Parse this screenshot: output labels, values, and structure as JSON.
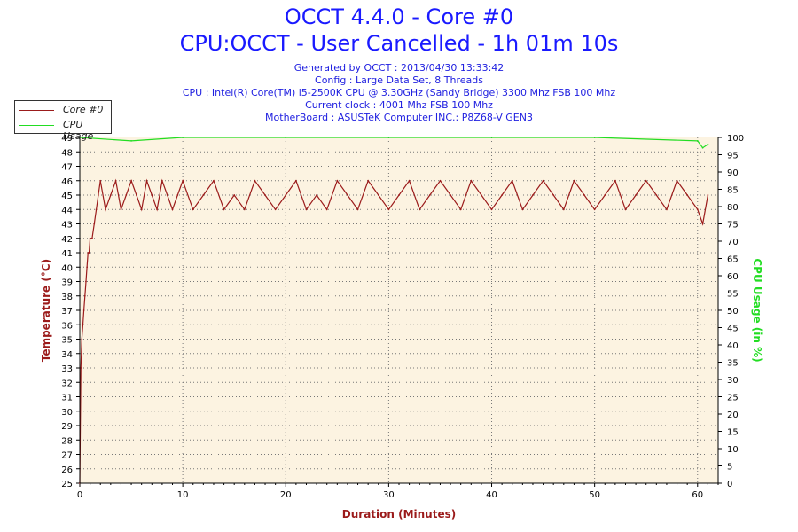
{
  "title": "OCCT 4.4.0 - Core #0",
  "subtitle": "CPU:OCCT - User Cancelled - 1h 01m 10s",
  "info_lines": [
    "Generated by OCCT : 2013/04/30 13:33:42",
    "Config : Large Data Set, 8 Threads",
    "CPU : Intel(R) Core(TM) i5-2500K CPU @ 3.30GHz (Sandy Bridge) 3300 Mhz FSB 100 Mhz",
    "Current clock : 4001 Mhz FSB 100 Mhz",
    "MotherBoard : ASUSTeK Computer INC.: P8Z68-V GEN3"
  ],
  "legend": [
    {
      "label": "Core #0",
      "color": "#9b1b1b"
    },
    {
      "label": "CPU Usage",
      "color": "#22dd22"
    }
  ],
  "colors": {
    "temperature": "#9b1b1b",
    "cpu_usage": "#22dd22",
    "plot_bg": "#fcf3e1",
    "axis_left_title": "#9b1b1b",
    "axis_right_title": "#22dd22"
  },
  "chart_data": {
    "type": "line",
    "title": "OCCT 4.4.0 - Core #0",
    "xlabel": "Duration (Minutes)",
    "ylabel": "Temperature (°C)",
    "y2label": "CPU Usage (in %)",
    "xlim": [
      0,
      62
    ],
    "ylim": [
      25,
      49
    ],
    "y2lim": [
      0,
      100
    ],
    "x_ticks": [
      0,
      10,
      20,
      30,
      40,
      50,
      60
    ],
    "y_ticks": [
      25,
      26,
      27,
      28,
      29,
      30,
      31,
      32,
      33,
      34,
      35,
      36,
      37,
      38,
      39,
      40,
      41,
      42,
      43,
      44,
      45,
      46,
      47,
      48,
      49
    ],
    "y2_ticks": [
      0,
      5,
      10,
      15,
      20,
      25,
      30,
      35,
      40,
      45,
      50,
      55,
      60,
      65,
      70,
      75,
      80,
      85,
      90,
      95,
      100
    ],
    "series": [
      {
        "name": "Core #0",
        "axis": "left",
        "x": [
          0,
          0.1,
          0.2,
          0.3,
          0.4,
          0.5,
          0.6,
          0.7,
          0.8,
          0.9,
          1.0,
          1.2,
          1.4,
          1.6,
          1.8,
          2.0,
          2.5,
          3.0,
          3.5,
          4.0,
          4.5,
          5.0,
          5.5,
          6.0,
          6.5,
          7.0,
          7.5,
          8.0,
          8.5,
          9.0,
          9.5,
          10,
          11,
          12,
          13,
          14,
          15,
          16,
          17,
          18,
          19,
          20,
          21,
          22,
          23,
          24,
          25,
          26,
          27,
          28,
          29,
          30,
          31,
          32,
          33,
          34,
          35,
          36,
          37,
          38,
          39,
          40,
          41,
          42,
          43,
          44,
          45,
          46,
          47,
          48,
          49,
          50,
          51,
          52,
          53,
          54,
          55,
          56,
          57,
          58,
          59,
          60,
          60.5,
          61
        ],
        "values": [
          25,
          33,
          35,
          36,
          37,
          38,
          39,
          40,
          41,
          41,
          42,
          42,
          43,
          44,
          45,
          46,
          44,
          45,
          46,
          44,
          45,
          46,
          45,
          44,
          46,
          45,
          44,
          46,
          45,
          44,
          45,
          46,
          44,
          45,
          46,
          44,
          45,
          44,
          46,
          45,
          44,
          45,
          46,
          44,
          45,
          44,
          46,
          45,
          44,
          46,
          45,
          44,
          45,
          46,
          44,
          45,
          46,
          45,
          44,
          46,
          45,
          44,
          45,
          46,
          44,
          45,
          46,
          45,
          44,
          46,
          45,
          44,
          45,
          46,
          44,
          45,
          46,
          45,
          44,
          46,
          45,
          44,
          43,
          45
        ]
      },
      {
        "name": "CPU Usage",
        "axis": "right",
        "x": [
          0,
          5,
          10,
          20,
          30,
          40,
          50,
          60,
          60.5,
          61
        ],
        "values": [
          100,
          99,
          100,
          100,
          100,
          100,
          100,
          99,
          97,
          98
        ]
      }
    ]
  }
}
